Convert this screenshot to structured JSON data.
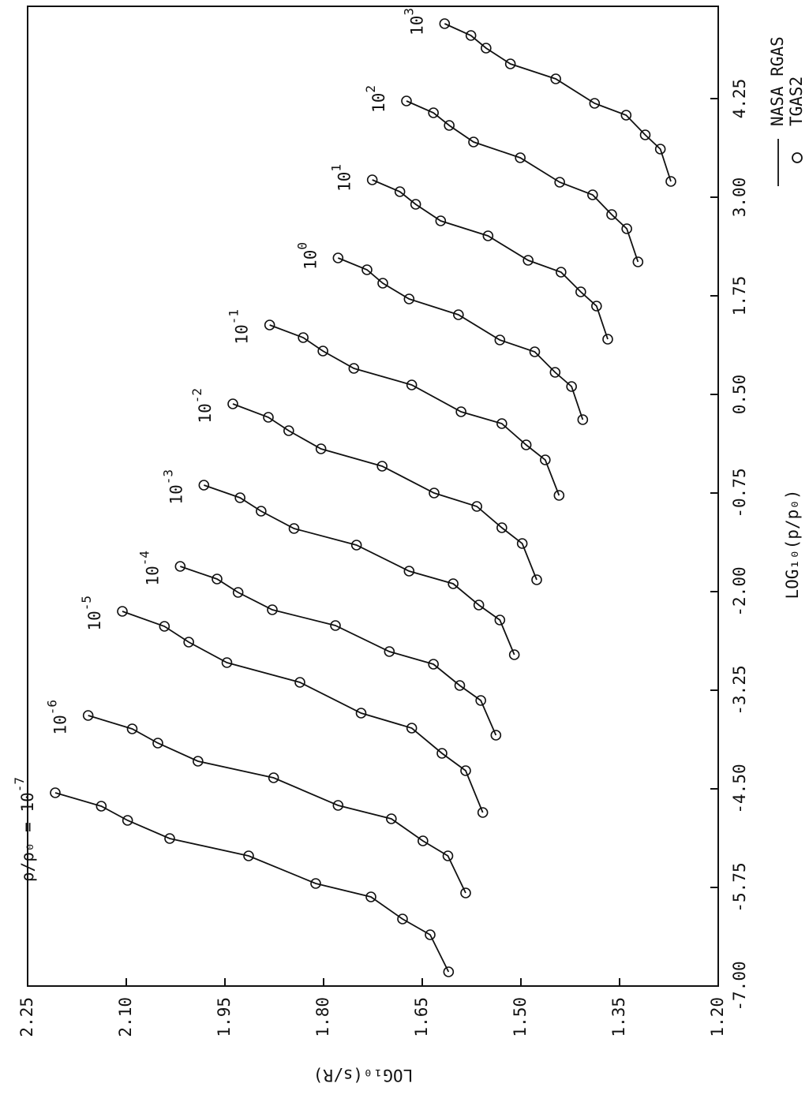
{
  "chart_data": {
    "type": "line",
    "x_label": "LOG₁₀(p/p₀)",
    "y_label": "LOG₁₀(s/R)",
    "xlim": [
      -7,
      5.42
    ],
    "ylim": [
      1.2,
      2.25
    ],
    "xticks": [
      {
        "value": -7,
        "label": "-7.00"
      },
      -5.75,
      {
        "value": -4.5,
        "label": "-4.50"
      },
      -3.25,
      {
        "value": -2,
        "label": "-2.00"
      },
      -0.75,
      {
        "value": 0.5,
        "label": "0.50"
      },
      1.75,
      {
        "value": 3,
        "label": "3.00"
      },
      4.25
    ],
    "yticks": [
      2.25,
      {
        "value": 2.1,
        "label": "2.10"
      },
      1.95,
      {
        "value": 1.8,
        "label": "1.80"
      },
      1.65,
      {
        "value": 1.5,
        "label": "1.50"
      },
      1.35,
      {
        "value": 1.2,
        "label": "1.20"
      }
    ],
    "legend": [
      {
        "name": "NASA RGAS",
        "marker": "line"
      },
      {
        "name": "TGAS2",
        "marker": "circle"
      }
    ],
    "color": "#111111",
    "series": [
      {
        "label_prefix": "ρ/ρ₀ = ",
        "label": "10",
        "label_exponent": "-7",
        "x": [
          -4.55,
          -4.72,
          -4.9,
          -5.13,
          -5.35,
          -5.7,
          -5.87,
          -6.15,
          -6.35,
          -6.82
        ],
        "values": [
          2.208,
          2.138,
          2.098,
          2.034,
          1.914,
          1.812,
          1.728,
          1.68,
          1.638,
          1.61
        ]
      },
      {
        "label": "10",
        "label_exponent": "-6",
        "x": [
          -3.57,
          -3.74,
          -3.92,
          -4.15,
          -4.36,
          -4.71,
          -4.88,
          -5.16,
          -5.35,
          -5.82
        ],
        "values": [
          2.158,
          2.091,
          2.052,
          1.991,
          1.876,
          1.778,
          1.697,
          1.649,
          1.611,
          1.584
        ]
      },
      {
        "label": "10",
        "label_exponent": "-5",
        "x": [
          -2.25,
          -2.44,
          -2.64,
          -2.9,
          -3.15,
          -3.54,
          -3.73,
          -4.05,
          -4.27,
          -4.8
        ],
        "values": [
          2.106,
          2.042,
          2.005,
          1.947,
          1.836,
          1.743,
          1.666,
          1.62,
          1.584,
          1.558
        ]
      },
      {
        "label": "10",
        "label_exponent": "-4",
        "x": [
          -1.68,
          -1.84,
          -2.01,
          -2.23,
          -2.43,
          -2.76,
          -2.92,
          -3.19,
          -3.38,
          -3.82
        ],
        "values": [
          2.018,
          1.962,
          1.93,
          1.878,
          1.782,
          1.7,
          1.633,
          1.593,
          1.561,
          1.538
        ]
      },
      {
        "label": "10",
        "label_exponent": "-3",
        "x": [
          -0.65,
          -0.81,
          -0.98,
          -1.2,
          -1.41,
          -1.74,
          -1.9,
          -2.17,
          -2.36,
          -2.8
        ],
        "values": [
          1.982,
          1.927,
          1.895,
          1.845,
          1.75,
          1.67,
          1.603,
          1.564,
          1.532,
          1.51
        ]
      },
      {
        "label": "10",
        "label_exponent": "-2",
        "x": [
          0.38,
          0.21,
          0.04,
          -0.19,
          -0.41,
          -0.75,
          -0.92,
          -1.19,
          -1.39,
          -1.85
        ],
        "values": [
          1.938,
          1.884,
          1.853,
          1.804,
          1.711,
          1.632,
          1.567,
          1.529,
          1.498,
          1.476
        ]
      },
      {
        "label": "10",
        "label_exponent": "-1",
        "x": [
          1.38,
          1.22,
          1.05,
          0.83,
          0.62,
          0.28,
          0.13,
          -0.14,
          -0.33,
          -0.78
        ],
        "values": [
          1.882,
          1.831,
          1.801,
          1.754,
          1.666,
          1.591,
          1.529,
          1.492,
          1.463,
          1.442
        ]
      },
      {
        "label": "10",
        "label_exponent": "0",
        "x": [
          2.23,
          2.08,
          1.91,
          1.71,
          1.51,
          1.19,
          1.04,
          0.78,
          0.6,
          0.18
        ],
        "values": [
          1.778,
          1.734,
          1.71,
          1.67,
          1.595,
          1.532,
          1.479,
          1.448,
          1.423,
          1.406
        ]
      },
      {
        "label": "10",
        "label_exponent": "1",
        "x": [
          3.22,
          3.07,
          2.91,
          2.7,
          2.51,
          2.2,
          2.05,
          1.8,
          1.62,
          1.2
        ],
        "values": [
          1.726,
          1.684,
          1.66,
          1.622,
          1.55,
          1.489,
          1.439,
          1.409,
          1.385,
          1.368
        ]
      },
      {
        "label": "10",
        "label_exponent": "2",
        "x": [
          4.22,
          4.07,
          3.91,
          3.7,
          3.5,
          3.19,
          3.03,
          2.78,
          2.6,
          2.18
        ],
        "values": [
          1.674,
          1.633,
          1.609,
          1.572,
          1.501,
          1.441,
          1.391,
          1.362,
          1.339,
          1.322
        ]
      },
      {
        "label": "10",
        "label_exponent": "3",
        "x": [
          5.2,
          5.05,
          4.89,
          4.69,
          4.5,
          4.19,
          4.04,
          3.79,
          3.61,
          3.2
        ],
        "values": [
          1.616,
          1.576,
          1.553,
          1.516,
          1.447,
          1.388,
          1.34,
          1.311,
          1.288,
          1.272
        ]
      }
    ]
  }
}
